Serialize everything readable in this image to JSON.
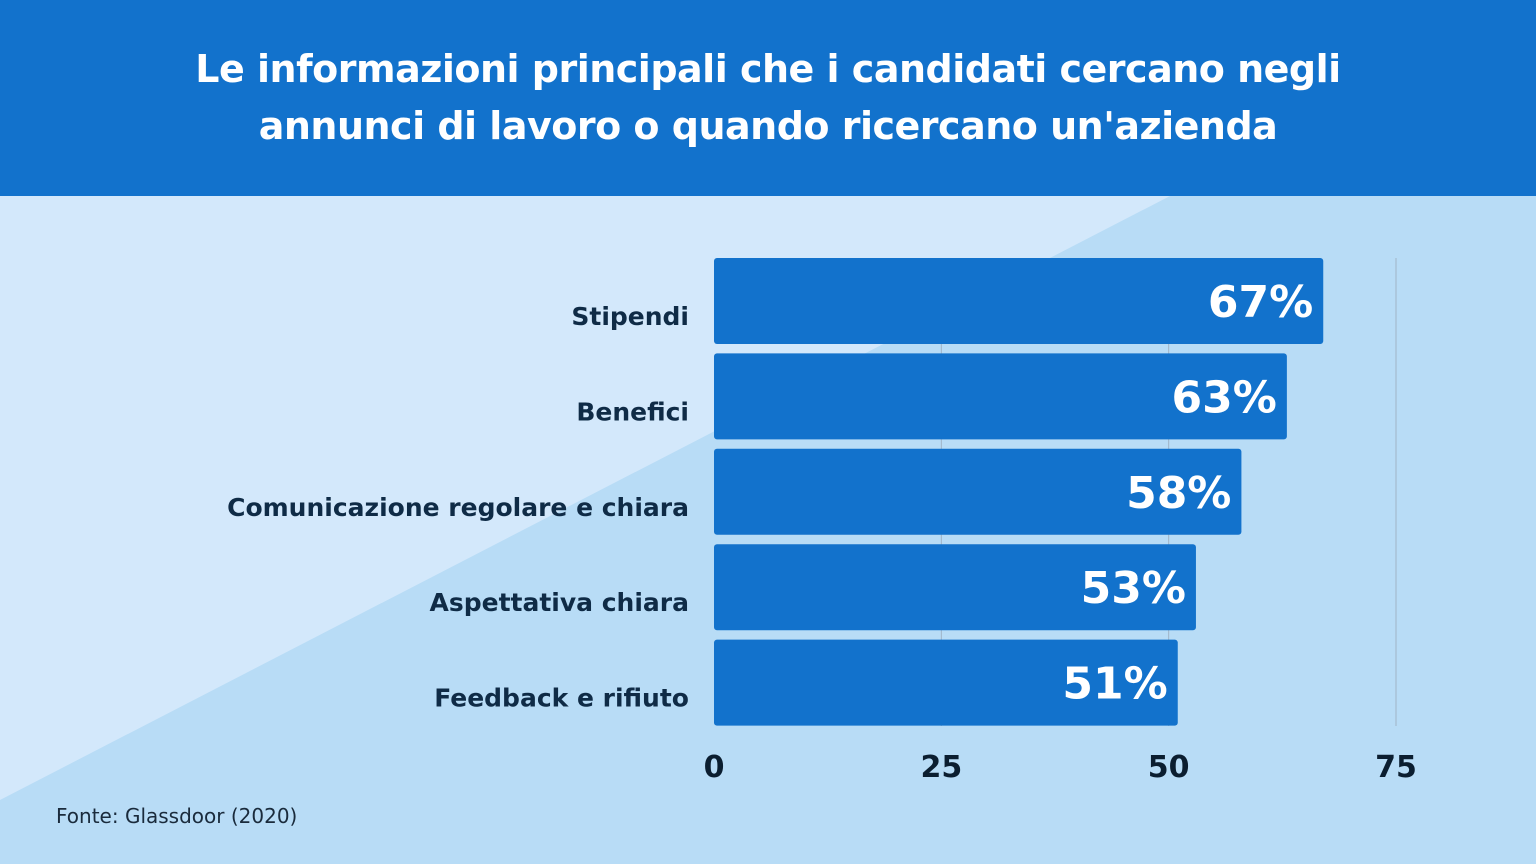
{
  "title": "Le informazioni principali che i candidati cercano negli annunci di lavoro o quando ricercano un'azienda",
  "source": "Fonte: Glassdoor (2020)",
  "colors": {
    "header": "#1272cc",
    "bar": "#1272cc",
    "bg_light": "#d3e8fb",
    "bg": "#b8dcf6"
  },
  "chart_data": {
    "type": "bar",
    "orientation": "horizontal",
    "title": "Le informazioni principali che i candidati cercano negli annunci di lavoro o quando ricercano un'azienda",
    "categories": [
      "Stipendi",
      "Benefici",
      "Comunicazione regolare e chiara",
      "Aspettativa chiara",
      "Feedback e rifiuto"
    ],
    "values": [
      67,
      63,
      58,
      53,
      51
    ],
    "value_labels": [
      "67%",
      "63%",
      "58%",
      "53%",
      "51%"
    ],
    "xlim": [
      0,
      75
    ],
    "xticks": [
      "0",
      "25",
      "50",
      "75"
    ],
    "grid": true,
    "xlabel": "",
    "ylabel": ""
  }
}
